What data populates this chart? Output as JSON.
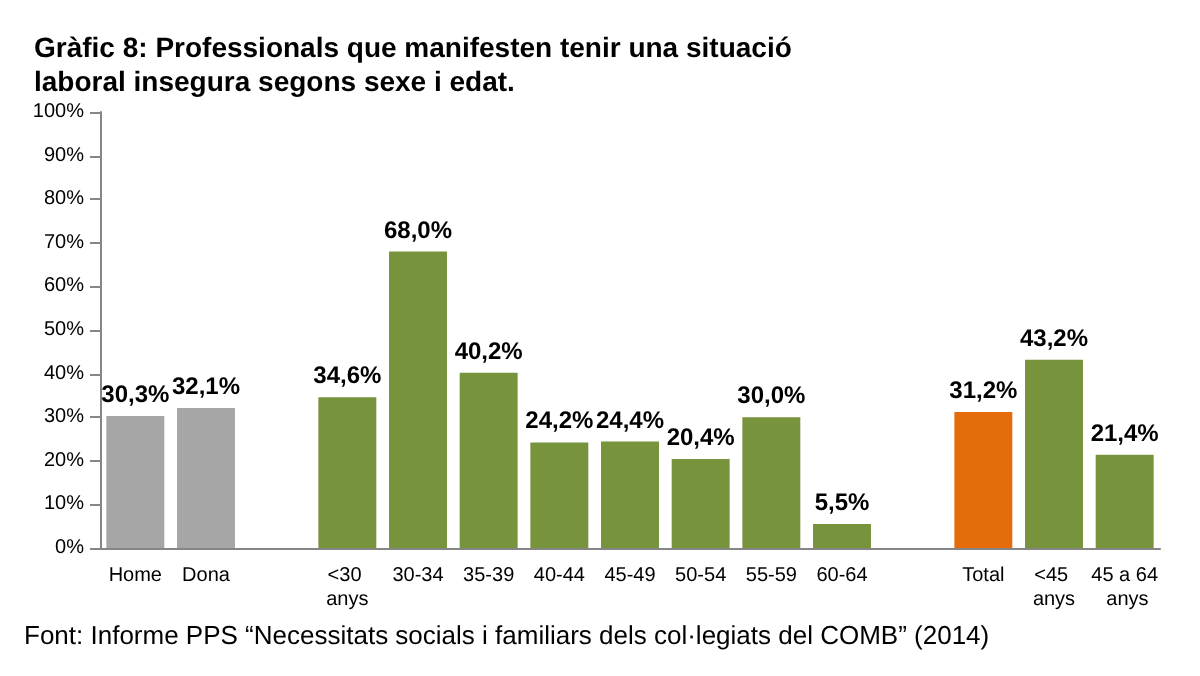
{
  "chart_data": {
    "type": "bar",
    "title": "Gràfic 8: Professionals que manifesten tenir una situació laboral insegura segons sexe i edat.",
    "categories": [
      "Home",
      "Dona",
      null,
      "<30 anys",
      "30-34",
      "35-39",
      "40-44",
      "45-49",
      "50-54",
      "55-59",
      "60-64",
      null,
      "Total",
      "<45 anys",
      "45 a 64 anys"
    ],
    "values": [
      30.3,
      32.1,
      null,
      34.6,
      68.0,
      40.2,
      24.2,
      24.4,
      20.4,
      30.0,
      5.5,
      null,
      31.2,
      43.2,
      21.4
    ],
    "colors": [
      "#a6a6a6",
      "#a6a6a6",
      null,
      "#77933c",
      "#77933c",
      "#77933c",
      "#77933c",
      "#77933c",
      "#77933c",
      "#77933c",
      "#77933c",
      null,
      "#e46c0a",
      "#77933c",
      "#77933c"
    ],
    "value_labels": [
      "30,3%",
      "32,1%",
      null,
      "34,6%",
      "68,0%",
      "40,2%",
      "24,2%",
      "24,4%",
      "20,4%",
      "30,0%",
      "5,5%",
      null,
      "31,2%",
      "43,2%",
      "21,4%"
    ],
    "ylim": [
      0,
      100
    ],
    "yticks": [
      {
        "value": 0,
        "label": "0%"
      },
      {
        "value": 10,
        "label": "10%"
      },
      {
        "value": 20,
        "label": "20%"
      },
      {
        "value": 30,
        "label": "30%"
      },
      {
        "value": 40,
        "label": "40%"
      },
      {
        "value": 50,
        "label": "50%"
      },
      {
        "value": 60,
        "label": "60%"
      },
      {
        "value": 70,
        "label": "70%"
      },
      {
        "value": 80,
        "label": "80%"
      },
      {
        "value": 90,
        "label": "90%"
      },
      {
        "value": 100,
        "label": "100%"
      }
    ],
    "grid": false,
    "annotations": [
      "Font: Informe PPS “Necessitats socials i familiars dels col·legiats del COMB” (2014)"
    ]
  }
}
